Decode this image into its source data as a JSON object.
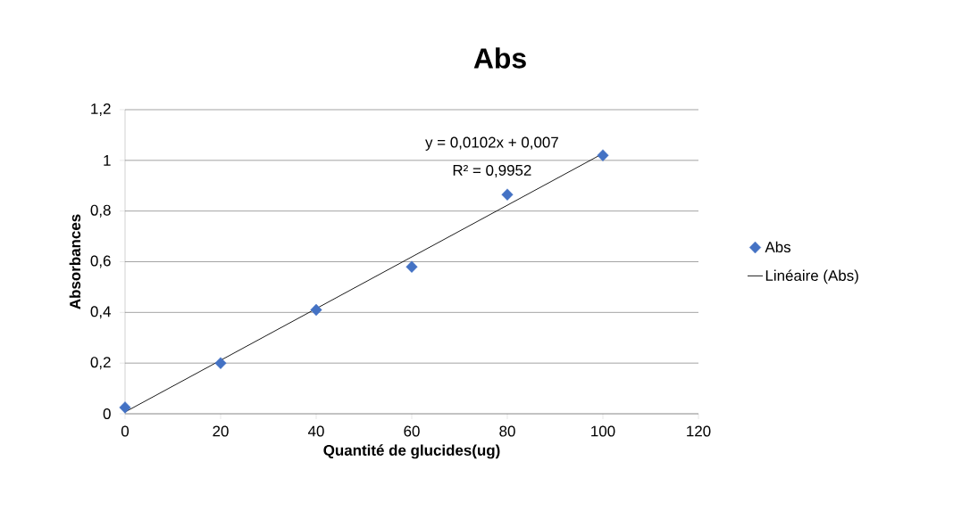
{
  "chart_data": {
    "type": "scatter",
    "title": "Abs",
    "xlabel": "Quantité de glucides(ug)",
    "ylabel": "Absorbances",
    "series": [
      {
        "name": "Abs",
        "color": "#4472c4",
        "marker": "diamond",
        "x": [
          0,
          20,
          40,
          60,
          80,
          100
        ],
        "values": [
          0.025,
          0.2,
          0.41,
          0.58,
          0.865,
          1.02
        ]
      },
      {
        "name": "Linéaire (Abs)",
        "type": "line",
        "color": "#000000",
        "marker": "none",
        "line_style": "solid",
        "x": [
          0,
          100
        ],
        "values": [
          0.007,
          1.027
        ]
      }
    ],
    "annotations": [
      "y = 0,0102x + 0,007",
      "R² = 0,9952"
    ],
    "xlim": [
      0,
      120
    ],
    "xticks": [
      0,
      20,
      40,
      60,
      80,
      100,
      120
    ],
    "ylim": [
      0,
      1.2
    ],
    "yticks": [
      0,
      {
        "value": 0.2,
        "label": "0,2"
      },
      {
        "value": 0.4,
        "label": "0,4"
      },
      {
        "value": 0.6,
        "label": "0,6"
      },
      {
        "value": 0.8,
        "label": "0,8"
      },
      1,
      {
        "value": 1.2,
        "label": "1,2"
      }
    ],
    "grid": "y",
    "legend": "right"
  }
}
